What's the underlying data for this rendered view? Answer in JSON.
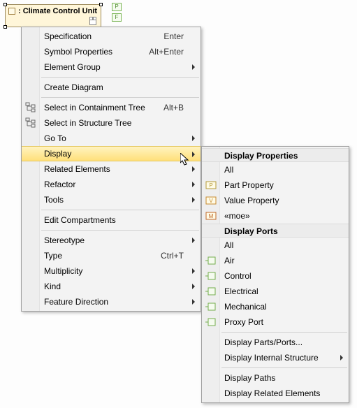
{
  "element": {
    "label": ": Climate Control Unit"
  },
  "top_icons": [
    "P",
    "F"
  ],
  "main_menu": {
    "items": [
      {
        "id": "spec",
        "label": "Specification",
        "shortcut": "Enter",
        "submenu": false
      },
      {
        "id": "symprop",
        "label": "Symbol Properties",
        "shortcut": "Alt+Enter",
        "submenu": false
      },
      {
        "id": "elgroup",
        "label": "Element Group",
        "submenu": true
      },
      {
        "sep": true
      },
      {
        "id": "creatediag",
        "label": "Create Diagram",
        "submenu": false
      },
      {
        "sep": true
      },
      {
        "id": "selctree",
        "label": "Select in Containment Tree",
        "shortcut": "Alt+B",
        "icon": "tree1",
        "submenu": false
      },
      {
        "id": "selstree",
        "label": "Select in Structure Tree",
        "icon": "tree2",
        "submenu": false
      },
      {
        "id": "goto",
        "label": "Go To",
        "submenu": true
      },
      {
        "id": "disp",
        "label": "Display",
        "submenu": true,
        "highlight": true
      },
      {
        "id": "relel",
        "label": "Related Elements",
        "submenu": true
      },
      {
        "id": "refactor",
        "label": "Refactor",
        "submenu": true
      },
      {
        "id": "tools",
        "label": "Tools",
        "submenu": true
      },
      {
        "sep": true
      },
      {
        "id": "editcomp",
        "label": "Edit Compartments",
        "submenu": false
      },
      {
        "sep": true
      },
      {
        "id": "stereo",
        "label": "Stereotype",
        "submenu": true
      },
      {
        "id": "type",
        "label": "Type",
        "shortcut": "Ctrl+T",
        "submenu": false
      },
      {
        "id": "mult",
        "label": "Multiplicity",
        "submenu": true
      },
      {
        "id": "kind",
        "label": "Kind",
        "submenu": true
      },
      {
        "id": "featdir",
        "label": "Feature Direction",
        "submenu": true
      }
    ]
  },
  "sub_menu": {
    "header1": "Display Properties",
    "props": [
      {
        "id": "p-all",
        "label": "All"
      },
      {
        "id": "p-part",
        "label": "Part Property",
        "icon": "P",
        "iconcolor": "#b59b3a"
      },
      {
        "id": "p-value",
        "label": "Value Property",
        "icon": "V",
        "iconcolor": "#c78a2e"
      },
      {
        "id": "p-moe",
        "label": "«moe»",
        "icon": "M",
        "iconcolor": "#c06a2a"
      }
    ],
    "header2": "Display Ports",
    "ports": [
      {
        "id": "pt-all",
        "label": "All"
      },
      {
        "id": "pt-air",
        "label": "Air",
        "icon": "port"
      },
      {
        "id": "pt-ctrl",
        "label": "Control",
        "icon": "port"
      },
      {
        "id": "pt-elec",
        "label": "Electrical",
        "icon": "port"
      },
      {
        "id": "pt-mech",
        "label": "Mechanical",
        "icon": "port"
      },
      {
        "id": "pt-proxy",
        "label": "Proxy Port",
        "icon": "port"
      }
    ],
    "tail": [
      {
        "id": "dispparts",
        "label": "Display Parts/Ports..."
      },
      {
        "id": "dispinternal",
        "label": "Display Internal Structure",
        "submenu": true
      }
    ],
    "tail2": [
      {
        "id": "disppaths",
        "label": "Display Paths"
      },
      {
        "id": "disprel",
        "label": "Display Related Elements"
      }
    ]
  },
  "colors": {
    "highlight_top": "#fff3c0",
    "highlight_bottom": "#ffe07a",
    "menu_bg": "#f3f3f3",
    "gutter_bg": "#eeeeee",
    "element_bg": "#fff6d9"
  }
}
